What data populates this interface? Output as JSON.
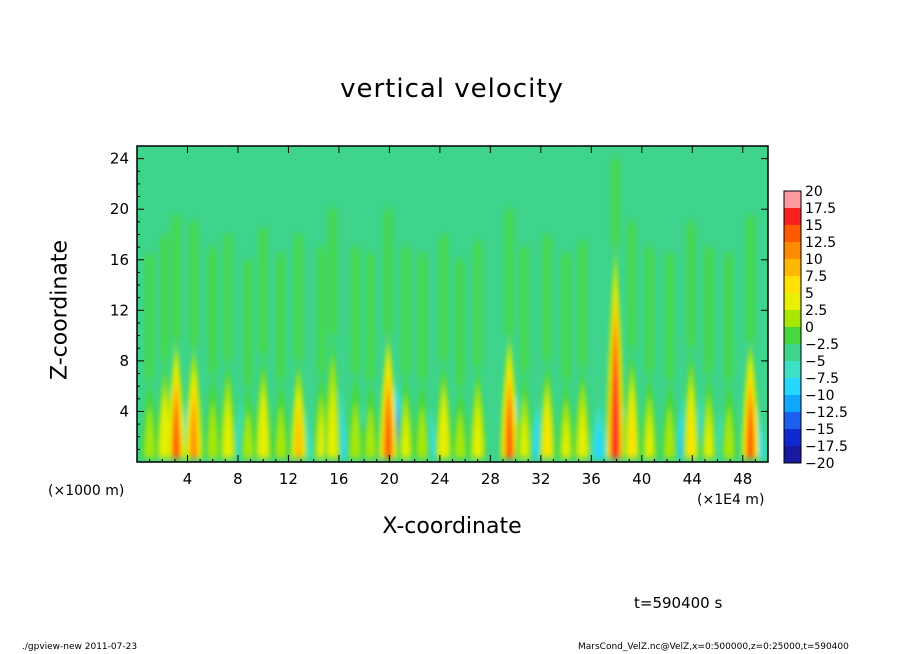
{
  "title": "vertical velocity",
  "x_axis_title": "X-coordinate",
  "y_axis_title": "Z-coordinate",
  "x_unit_left": "(×1000 m)",
  "x_unit_right": "(×1E4 m)",
  "time_label": "t=590400 s",
  "footer_left": "./gpview-new   2011-07-23",
  "footer_right": "MarsCond_VelZ.nc@VelZ,x=0:500000,z=0:25000,t=590400",
  "chart_data": {
    "type": "heatmap",
    "title": "vertical velocity",
    "xlabel": "X-coordinate",
    "ylabel": "Z-coordinate",
    "xlim": [
      0,
      50
    ],
    "ylim": [
      0,
      25
    ],
    "x_ticks": [
      "4",
      "8",
      "12",
      "16",
      "20",
      "24",
      "28",
      "32",
      "36",
      "40",
      "44",
      "48"
    ],
    "x_tick_values": [
      4,
      8,
      12,
      16,
      20,
      24,
      28,
      32,
      36,
      40,
      44,
      48
    ],
    "y_ticks": [
      "4",
      "8",
      "12",
      "16",
      "20",
      "24"
    ],
    "y_tick_values": [
      4,
      8,
      12,
      16,
      20,
      24
    ],
    "colorbar": {
      "labels": [
        "20",
        "17.5",
        "15",
        "12.5",
        "10",
        "7.5",
        "5",
        "2.5",
        "0",
        "−2.5",
        "−5",
        "−7.5",
        "−10",
        "−12.5",
        "−15",
        "−17.5",
        "−20"
      ],
      "levels": [
        20,
        17.5,
        15,
        12.5,
        10,
        7.5,
        5,
        2.5,
        0,
        -2.5,
        -5,
        -7.5,
        -10,
        -12.5,
        -15,
        -17.5,
        -20
      ],
      "colors": [
        "#ff9aa0",
        "#ff2020",
        "#ff5a00",
        "#ff8c00",
        "#ffb800",
        "#ffe000",
        "#e8f000",
        "#a8e800",
        "#46d83c",
        "#3ed48c",
        "#3ce0c4",
        "#24d8ff",
        "#10a8ff",
        "#1c60f0",
        "#1028d0",
        "#1818a0",
        "#6a10b8"
      ]
    },
    "updrafts": [
      {
        "x": 1.0,
        "top": 6.5,
        "peak": 4
      },
      {
        "x": 2.2,
        "top": 8,
        "peak": 7
      },
      {
        "x": 3.1,
        "top": 9.5,
        "peak": 15
      },
      {
        "x": 4.5,
        "top": 9,
        "peak": 13
      },
      {
        "x": 6.0,
        "top": 7,
        "peak": 4
      },
      {
        "x": 7.2,
        "top": 8,
        "peak": 6
      },
      {
        "x": 8.8,
        "top": 6,
        "peak": 4
      },
      {
        "x": 10.0,
        "top": 8.5,
        "peak": 7
      },
      {
        "x": 11.4,
        "top": 6.5,
        "peak": 4
      },
      {
        "x": 12.8,
        "top": 8,
        "peak": 10
      },
      {
        "x": 14.6,
        "top": 7,
        "peak": 5
      },
      {
        "x": 15.5,
        "top": 10,
        "peak": 6
      },
      {
        "x": 17.3,
        "top": 7,
        "peak": 4
      },
      {
        "x": 18.5,
        "top": 6.5,
        "peak": 4
      },
      {
        "x": 19.9,
        "top": 10,
        "peak": 16
      },
      {
        "x": 21.3,
        "top": 7,
        "peak": 5
      },
      {
        "x": 22.6,
        "top": 6.5,
        "peak": 4
      },
      {
        "x": 24.3,
        "top": 8,
        "peak": 7
      },
      {
        "x": 25.6,
        "top": 6,
        "peak": 4
      },
      {
        "x": 27.0,
        "top": 7.5,
        "peak": 6
      },
      {
        "x": 29.5,
        "top": 10,
        "peak": 15
      },
      {
        "x": 30.7,
        "top": 7,
        "peak": 5
      },
      {
        "x": 32.5,
        "top": 8,
        "peak": 8
      },
      {
        "x": 34.0,
        "top": 6.5,
        "peak": 5
      },
      {
        "x": 35.3,
        "top": 7.5,
        "peak": 6
      },
      {
        "x": 37.9,
        "top": 17,
        "peak": 18
      },
      {
        "x": 39.2,
        "top": 9,
        "peak": 8
      },
      {
        "x": 40.6,
        "top": 7,
        "peak": 5
      },
      {
        "x": 42.2,
        "top": 6.5,
        "peak": 4
      },
      {
        "x": 43.9,
        "top": 9,
        "peak": 8
      },
      {
        "x": 45.3,
        "top": 7,
        "peak": 5
      },
      {
        "x": 46.9,
        "top": 6.5,
        "peak": 4
      },
      {
        "x": 48.6,
        "top": 9.5,
        "peak": 15
      }
    ],
    "downdrafts": [
      {
        "x": 2.7,
        "top": 6,
        "peak": -8
      },
      {
        "x": 4.0,
        "top": 5,
        "peak": -6
      },
      {
        "x": 8.3,
        "top": 5,
        "peak": -6
      },
      {
        "x": 13.4,
        "top": 4.5,
        "peak": -5
      },
      {
        "x": 16.0,
        "top": 6,
        "peak": -8
      },
      {
        "x": 17.9,
        "top": 5,
        "peak": -7
      },
      {
        "x": 20.6,
        "top": 6.5,
        "peak": -11
      },
      {
        "x": 23.2,
        "top": 4.5,
        "peak": -6
      },
      {
        "x": 30.2,
        "top": 5.5,
        "peak": -8
      },
      {
        "x": 31.8,
        "top": 5,
        "peak": -7
      },
      {
        "x": 36.6,
        "top": 5,
        "peak": -6
      },
      {
        "x": 38.6,
        "top": 4.5,
        "peak": -7
      },
      {
        "x": 43.3,
        "top": 5,
        "peak": -8
      },
      {
        "x": 44.7,
        "top": 5.5,
        "peak": -7
      },
      {
        "x": 46.3,
        "top": 4.5,
        "peak": -5
      },
      {
        "x": 49.2,
        "top": 4.5,
        "peak": -7
      }
    ],
    "background_value": -1
  }
}
